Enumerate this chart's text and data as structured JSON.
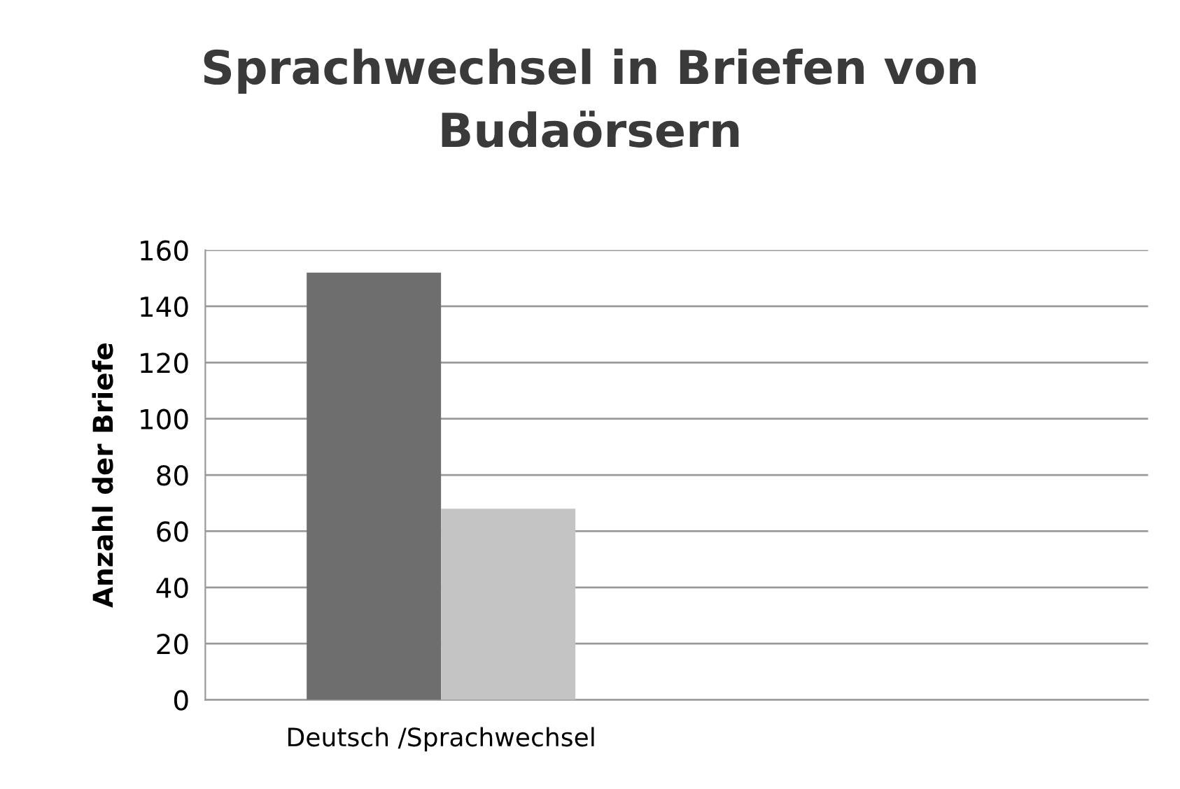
{
  "chart_data": {
    "type": "bar",
    "title": "Sprachwechsel in Briefen von\nBudaörsern",
    "ylabel": "Anzahl der Briefe",
    "categories": [
      "Deutsch /Sprachwechsel",
      null
    ],
    "series": [
      {
        "color": "#6e6e6e",
        "values": [
          152,
          null
        ]
      },
      {
        "color": "#c4c4c4",
        "values": [
          68,
          null
        ]
      }
    ],
    "ylim": [
      0,
      160
    ],
    "yticks": [
      0,
      20,
      40,
      60,
      80,
      100,
      120,
      140,
      160
    ],
    "grid": "y"
  }
}
